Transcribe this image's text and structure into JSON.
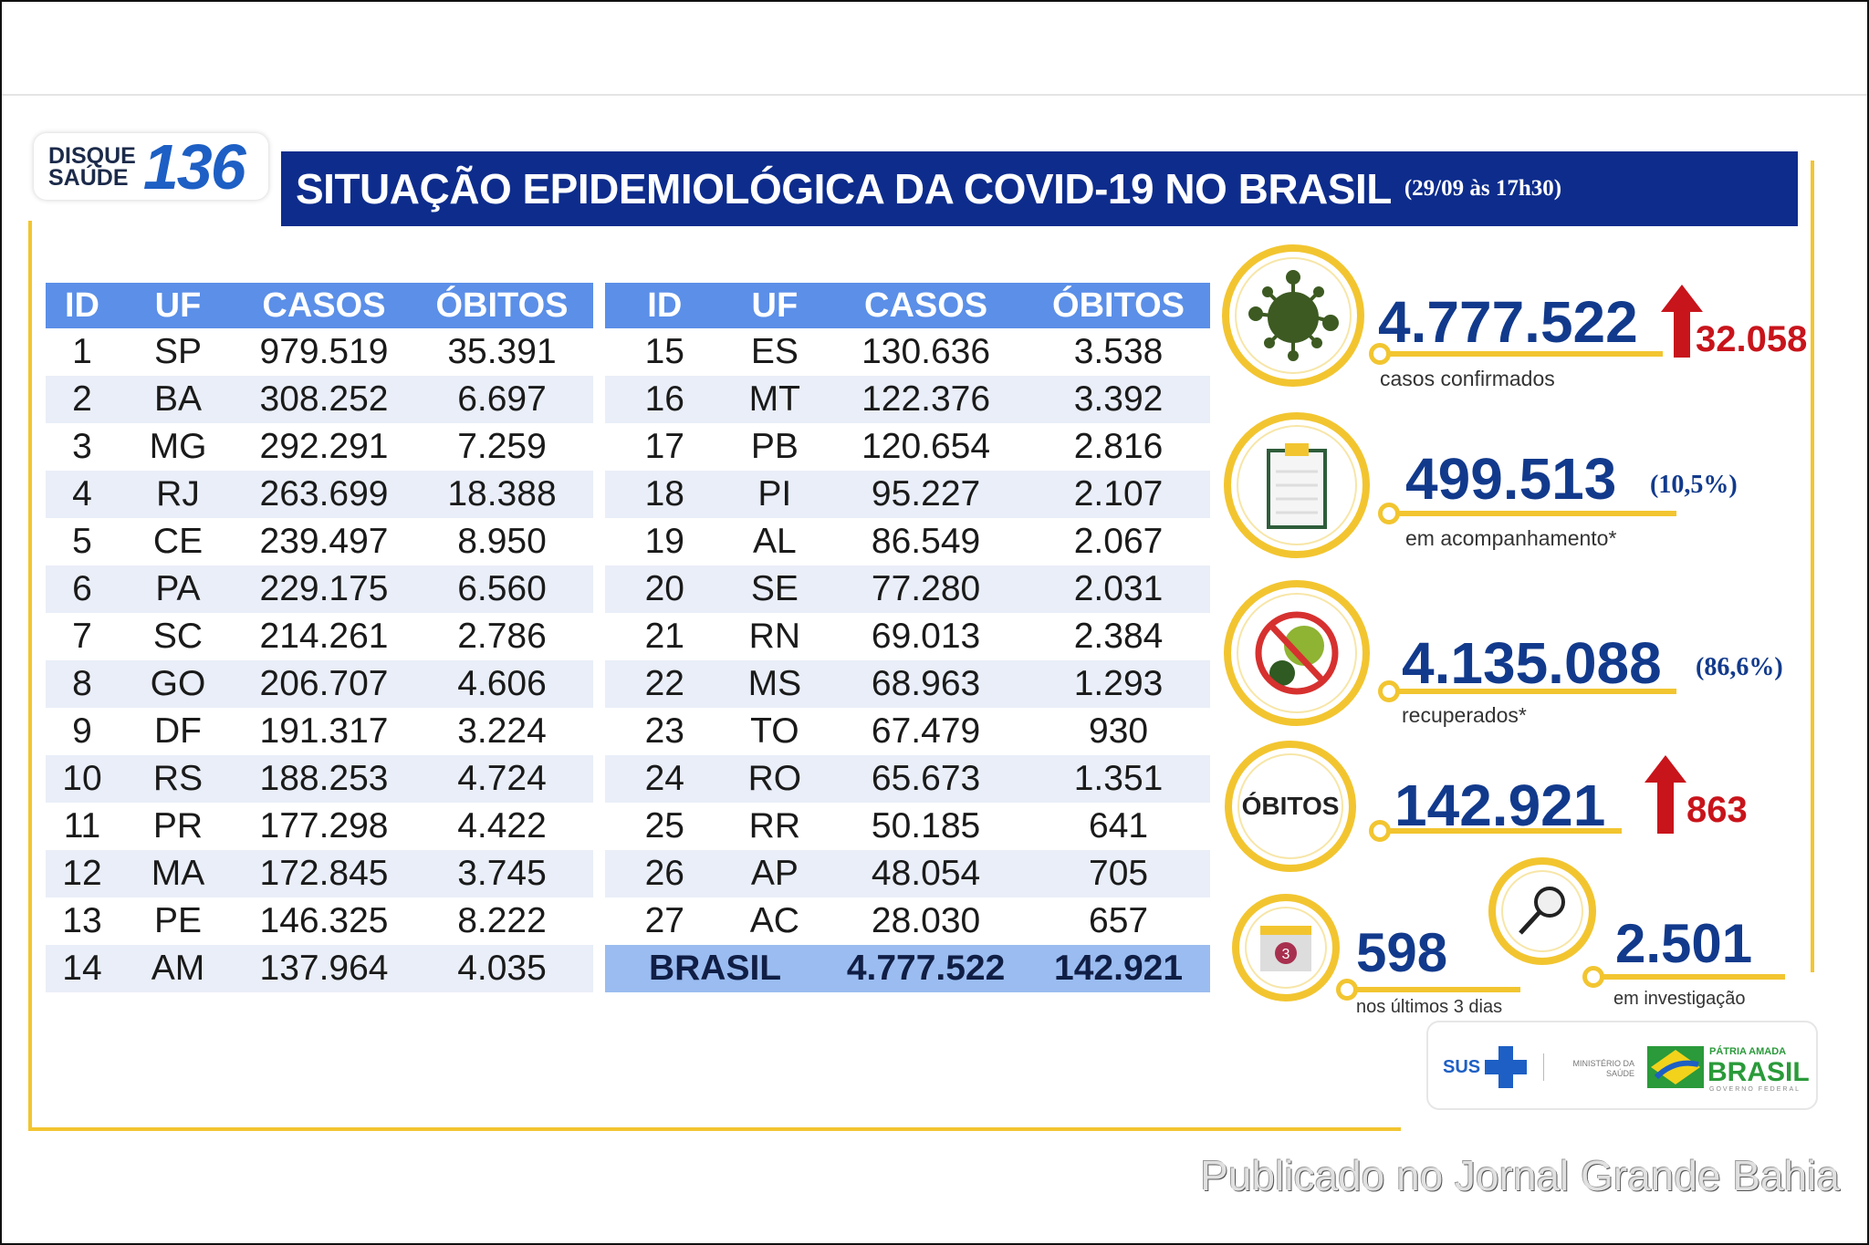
{
  "header": {
    "badge_small": "DISQUE\nSAÚDE",
    "badge_number": "136",
    "title": "SITUAÇÃO EPIDEMIOLÓGICA DA COVID-19 NO BRASIL",
    "date": "(29/09 às 17h30)"
  },
  "table": {
    "columns": [
      "ID",
      "UF",
      "CASOS",
      "ÓBITOS"
    ],
    "left": [
      [
        "1",
        "SP",
        "979.519",
        "35.391"
      ],
      [
        "2",
        "BA",
        "308.252",
        "6.697"
      ],
      [
        "3",
        "MG",
        "292.291",
        "7.259"
      ],
      [
        "4",
        "RJ",
        "263.699",
        "18.388"
      ],
      [
        "5",
        "CE",
        "239.497",
        "8.950"
      ],
      [
        "6",
        "PA",
        "229.175",
        "6.560"
      ],
      [
        "7",
        "SC",
        "214.261",
        "2.786"
      ],
      [
        "8",
        "GO",
        "206.707",
        "4.606"
      ],
      [
        "9",
        "DF",
        "191.317",
        "3.224"
      ],
      [
        "10",
        "RS",
        "188.253",
        "4.724"
      ],
      [
        "11",
        "PR",
        "177.298",
        "4.422"
      ],
      [
        "12",
        "MA",
        "172.845",
        "3.745"
      ],
      [
        "13",
        "PE",
        "146.325",
        "8.222"
      ],
      [
        "14",
        "AM",
        "137.964",
        "4.035"
      ]
    ],
    "right": [
      [
        "15",
        "ES",
        "130.636",
        "3.538"
      ],
      [
        "16",
        "MT",
        "122.376",
        "3.392"
      ],
      [
        "17",
        "PB",
        "120.654",
        "2.816"
      ],
      [
        "18",
        "PI",
        "95.227",
        "2.107"
      ],
      [
        "19",
        "AL",
        "86.549",
        "2.067"
      ],
      [
        "20",
        "SE",
        "77.280",
        "2.031"
      ],
      [
        "21",
        "RN",
        "69.013",
        "2.384"
      ],
      [
        "22",
        "MS",
        "68.963",
        "1.293"
      ],
      [
        "23",
        "TO",
        "67.479",
        "930"
      ],
      [
        "24",
        "RO",
        "65.673",
        "1.351"
      ],
      [
        "25",
        "RR",
        "50.185",
        "641"
      ],
      [
        "26",
        "AP",
        "48.054",
        "705"
      ],
      [
        "27",
        "AC",
        "28.030",
        "657"
      ]
    ],
    "total": {
      "label": "BRASIL",
      "casos": "4.777.522",
      "obitos": "142.921"
    }
  },
  "stats": {
    "confirmed": {
      "value": "4.777.522",
      "increase": "32.058",
      "label": "casos confirmados",
      "icon": "virus-icon"
    },
    "monitoring": {
      "value": "499.513",
      "pct": "(10,5%)",
      "label": "em acompanhamento*",
      "icon": "clipboard-icon"
    },
    "recovered": {
      "value": "4.135.088",
      "pct": "(86,6%)",
      "label": "recuperados*",
      "icon": "no-virus-icon"
    },
    "deaths": {
      "circle_label": "ÓBITOS",
      "value": "142.921",
      "increase": "863"
    },
    "last3": {
      "value": "598",
      "label": "nos últimos 3 dias",
      "icon": "calendar-icon",
      "icon_text": "3"
    },
    "investigation": {
      "value": "2.501",
      "label": "em investigação",
      "icon": "magnifier-icon"
    }
  },
  "logos": {
    "sus": "SUS",
    "ministry": "MINISTÉRIO DA SAÚDE",
    "patria": "PÁTRIA AMADA",
    "brasil": "BRASIL",
    "gov": "GOVERNO FEDERAL"
  },
  "watermark": "Publicado no Jornal Grande Bahia",
  "colors": {
    "navy": "#0d2c8c",
    "header_blue": "#5b8fe8",
    "yellow": "#f2c530",
    "red": "#c8141b",
    "number_blue": "#123a8c"
  }
}
